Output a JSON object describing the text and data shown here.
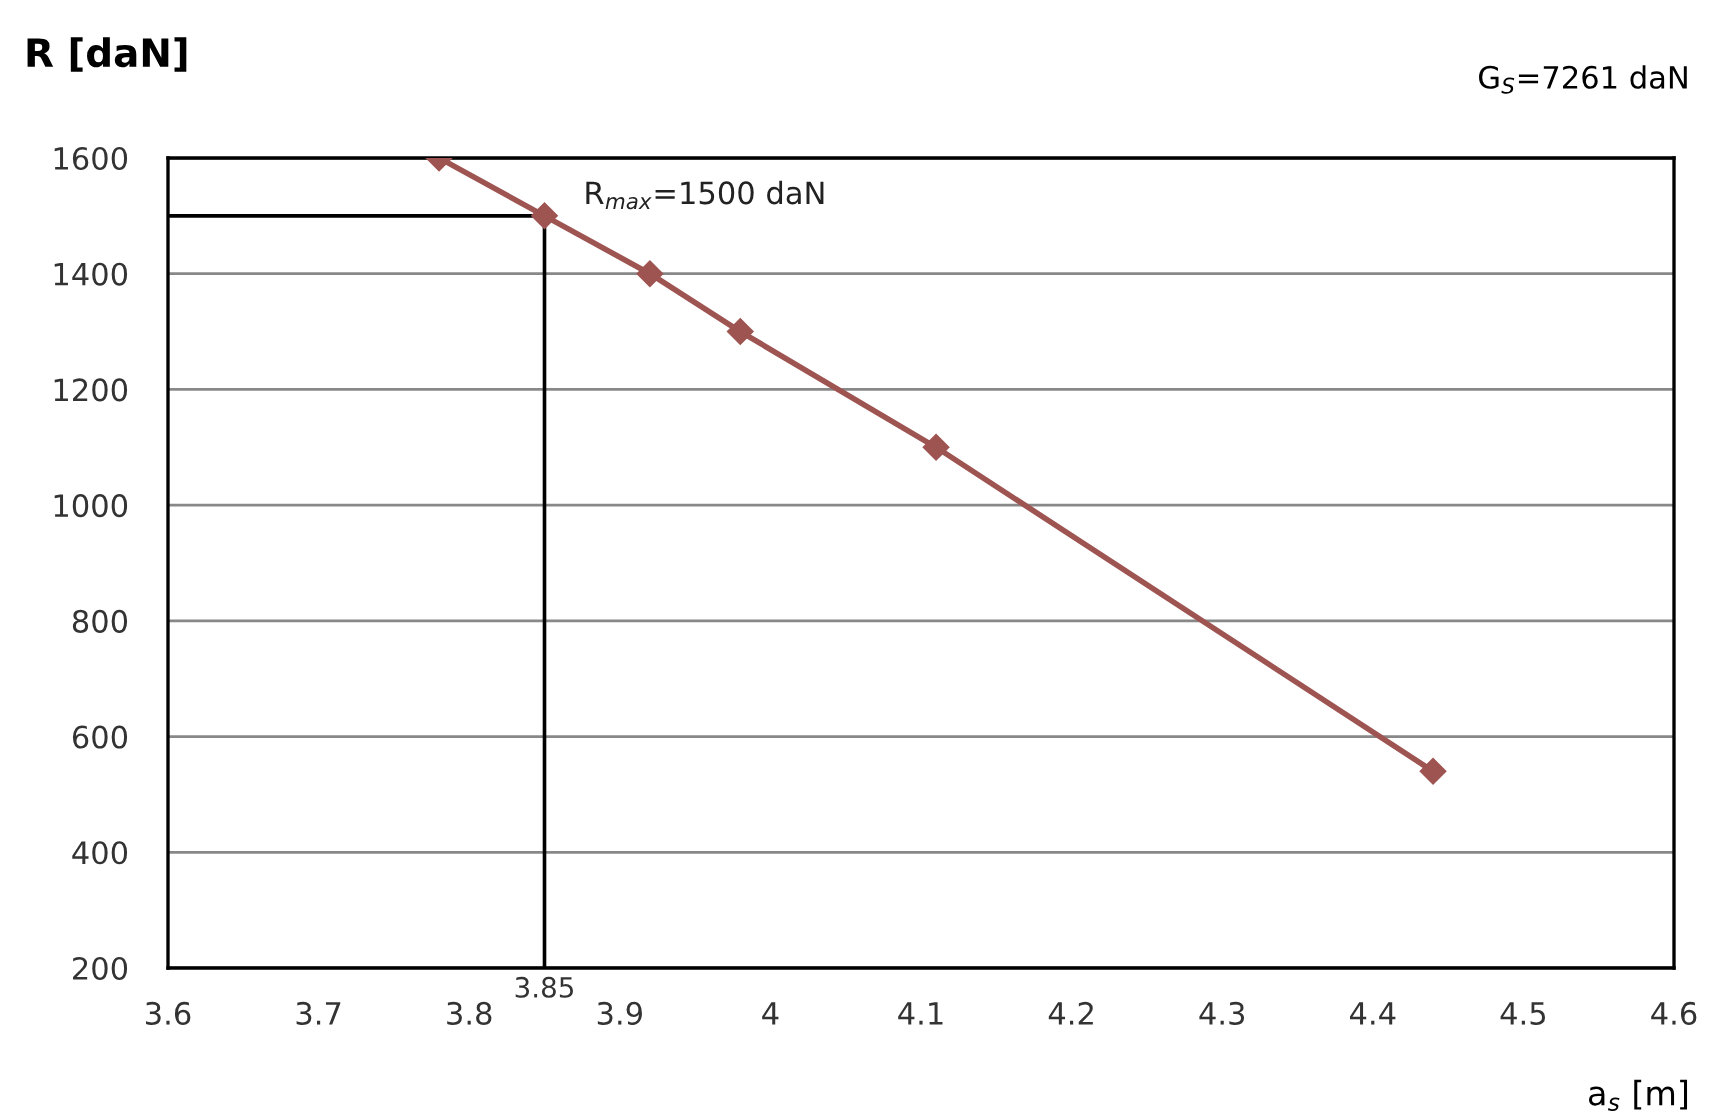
{
  "chart_data": {
    "type": "line",
    "ylabel": "R [daN]",
    "xlabel": "a$_{s}$ [m]",
    "annotations": [
      "G$_{S}$=7261 daN",
      {
        "text": "R$_{max}$=1500 daN",
        "x": 3.85,
        "y": 1500
      }
    ],
    "x": [
      3.78,
      3.85,
      3.92,
      3.98,
      4.11,
      4.44
    ],
    "series": [
      {
        "color": "#9e5451",
        "values": [
          1600,
          1500,
          1400,
          1300,
          1100,
          540
        ]
      }
    ],
    "marker": "diamond",
    "line_style": "solid",
    "xlim": [
      3.6,
      4.6
    ],
    "xticks": [
      3.6,
      3.7,
      3.8,
      3.9,
      4,
      4.1,
      4.2,
      4.3,
      4.4,
      4.5,
      4.6
    ],
    "ylim": [
      200,
      1600
    ],
    "yticks": [
      200,
      400,
      600,
      800,
      1000,
      1200,
      1400,
      1600
    ],
    "grid": "y",
    "ref_lines": [
      {
        "axis": "x",
        "value": 3.85,
        "label": "3.85",
        "color": "#000000"
      },
      {
        "axis": "y",
        "value": 1500,
        "label": null,
        "color": "#000000"
      }
    ]
  }
}
